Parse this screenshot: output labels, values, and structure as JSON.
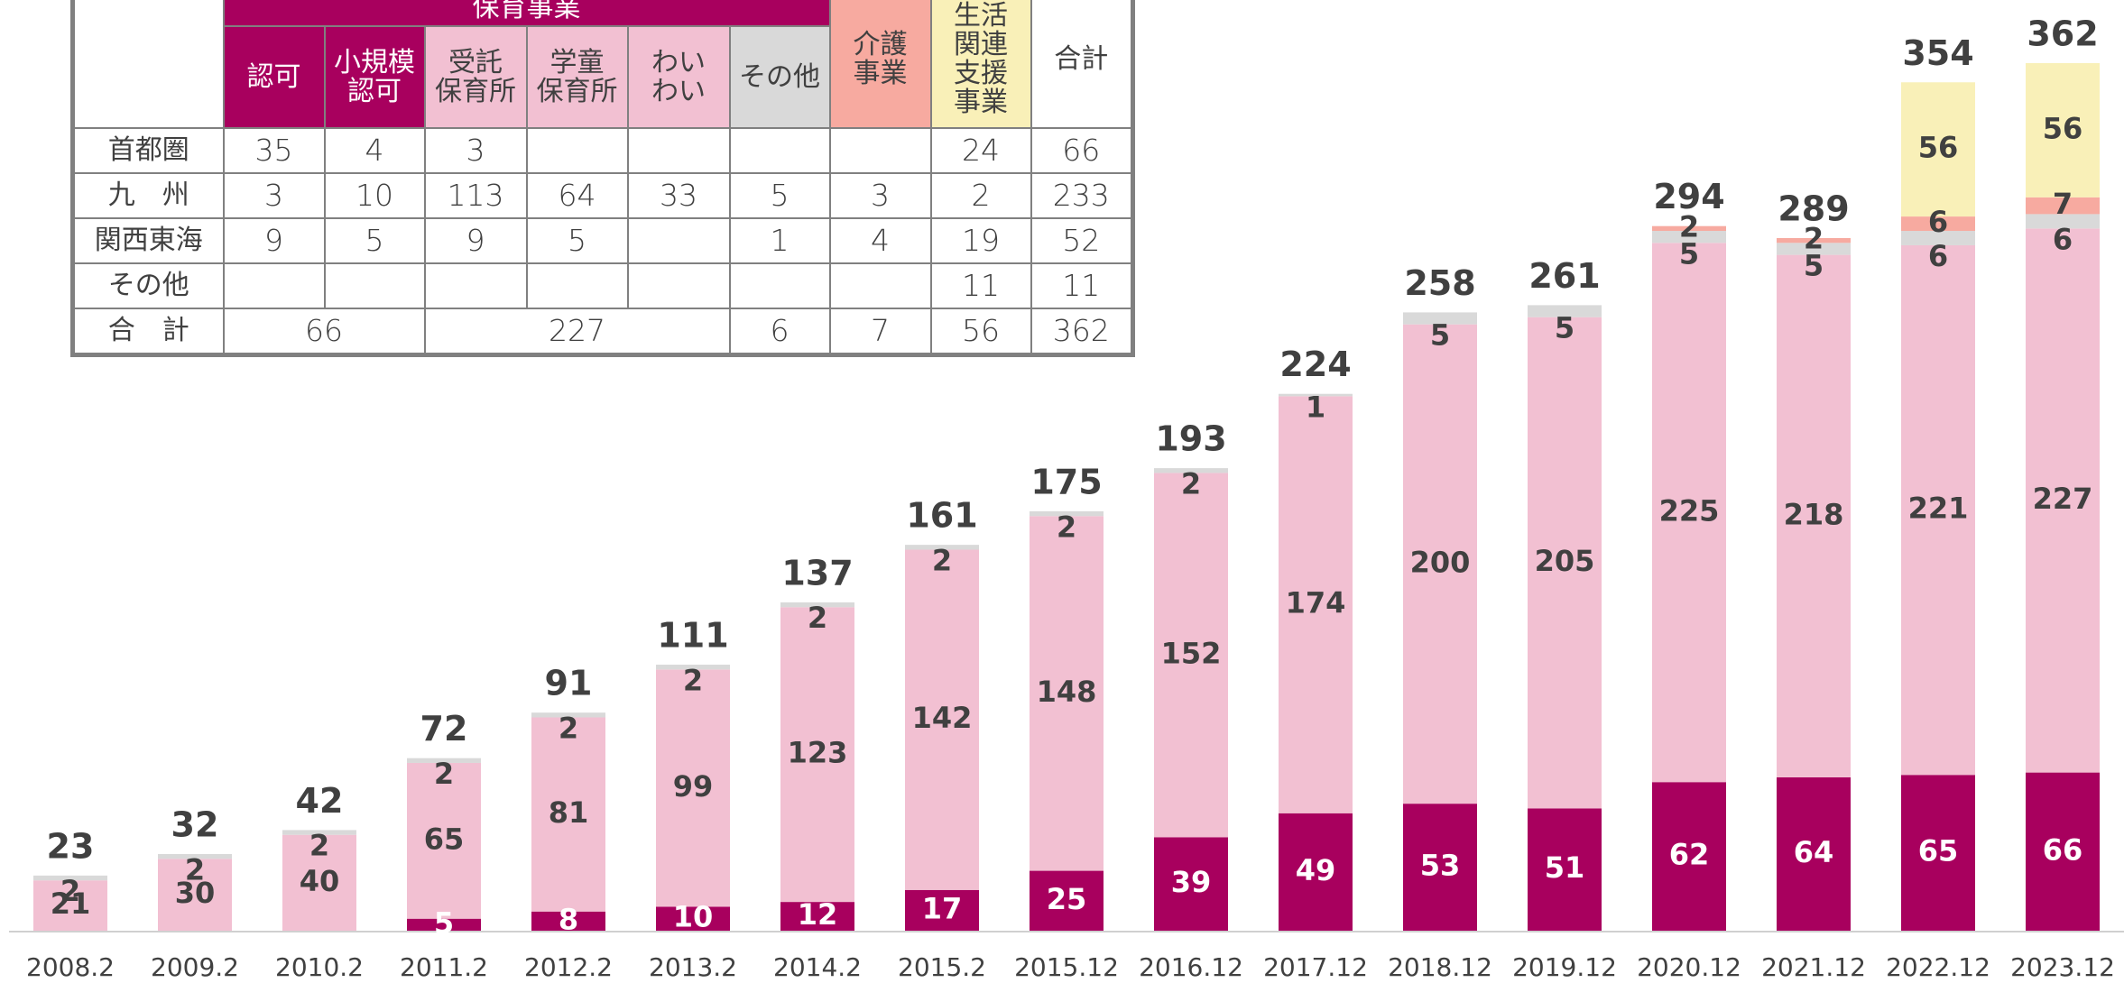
{
  "chart_data": {
    "type": "stacked_bar",
    "categories": [
      "2008.2",
      "2009.2",
      "2010.2",
      "2011.2",
      "2012.2",
      "2013.2",
      "2014.2",
      "2015.2",
      "2015.12",
      "2016.12",
      "2017.12",
      "2018.12",
      "2019.12",
      "2020.12",
      "2021.12",
      "2022.12",
      "2023.12"
    ],
    "series": [
      {
        "color": "#a8005e",
        "label_color": "#ffffff",
        "values": [
          null,
          null,
          null,
          5,
          8,
          10,
          12,
          17,
          25,
          39,
          49,
          53,
          51,
          62,
          64,
          65,
          66
        ]
      },
      {
        "color": "#f2c0d2",
        "label_color": "#404040",
        "values": [
          21,
          30,
          40,
          65,
          81,
          99,
          123,
          142,
          148,
          152,
          174,
          200,
          205,
          225,
          218,
          221,
          227
        ]
      },
      {
        "color": "#d9d9d9",
        "label_color": "#404040",
        "values": [
          2,
          2,
          2,
          2,
          2,
          2,
          2,
          2,
          2,
          2,
          1,
          5,
          5,
          5,
          5,
          6,
          6
        ]
      },
      {
        "color": "#f7aaa0",
        "label_color": "#404040",
        "values": [
          null,
          null,
          null,
          null,
          null,
          null,
          null,
          null,
          null,
          null,
          null,
          null,
          null,
          2,
          2,
          6,
          7
        ]
      },
      {
        "color": "#f9f0b8",
        "label_color": "#404040",
        "values": [
          null,
          null,
          null,
          null,
          null,
          null,
          null,
          null,
          null,
          null,
          null,
          null,
          null,
          null,
          null,
          56,
          56
        ]
      }
    ],
    "totals": [
      23,
      32,
      42,
      72,
      91,
      111,
      137,
      161,
      175,
      193,
      224,
      258,
      261,
      294,
      289,
      354,
      362
    ]
  },
  "table": {
    "group_header": "保育事業",
    "sub_headers": [
      [
        "認可"
      ],
      [
        "小規模",
        "認可"
      ],
      [
        "受託",
        "保育所"
      ],
      [
        "学童",
        "保育所"
      ],
      [
        "わい",
        "わい"
      ],
      [
        "その他"
      ]
    ],
    "side_headers": [
      [
        "介護",
        "事業"
      ],
      [
        "生活",
        "関連",
        "支援",
        "事業"
      ],
      [
        "合計"
      ]
    ],
    "rows": [
      {
        "label": "首都圏",
        "cells": [
          35,
          4,
          3,
          null,
          null,
          null,
          null,
          24,
          66
        ]
      },
      {
        "label": "九　州",
        "cells": [
          3,
          10,
          113,
          64,
          33,
          5,
          3,
          2,
          233
        ]
      },
      {
        "label": "関西東海",
        "cells": [
          9,
          5,
          9,
          5,
          null,
          1,
          4,
          19,
          52
        ]
      },
      {
        "label": "その他",
        "cells": [
          null,
          null,
          null,
          null,
          null,
          null,
          null,
          11,
          11
        ]
      }
    ],
    "total_row": {
      "label": "合　計",
      "cells": [
        66,
        227,
        6,
        7,
        56,
        362
      ]
    }
  }
}
